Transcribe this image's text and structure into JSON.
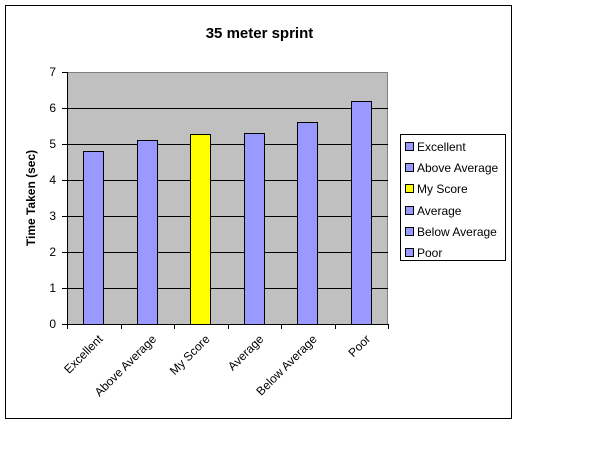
{
  "chart_data": {
    "type": "bar",
    "title": "35 meter sprint",
    "xlabel": "",
    "ylabel": "Time Taken (sec)",
    "ylim": [
      0,
      7
    ],
    "yticks": [
      0,
      1,
      2,
      3,
      4,
      5,
      6,
      7
    ],
    "grid": true,
    "legend_position": "right",
    "categories": [
      "Excellent",
      "Above Average",
      "My Score",
      "Average",
      "Below Average",
      "Poor"
    ],
    "values": [
      4.8,
      5.1,
      5.28,
      5.3,
      5.6,
      6.2
    ],
    "colors": [
      "#9999ff",
      "#9999ff",
      "#ffff00",
      "#9999ff",
      "#9999ff",
      "#9999ff"
    ],
    "legend": [
      "Excellent",
      "Above Average",
      "My Score",
      "Average",
      "Below Average",
      "Poor"
    ]
  },
  "colors": {
    "plot_background": "#c0c0c0",
    "bar_default": "#9999ff",
    "bar_highlight": "#ffff00"
  }
}
